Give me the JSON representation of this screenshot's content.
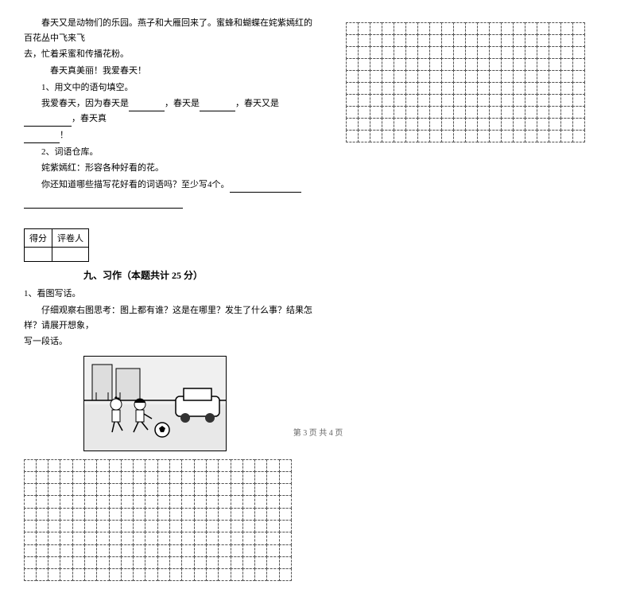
{
  "passage": {
    "line1": "春天又是动物们的乐园。燕子和大雁回来了。蜜蜂和蝴蝶在姹紫嫣红的百花丛中飞来飞",
    "line2": "去，忙着采蜜和传播花粉。",
    "line3": "春天真美丽！我爱春天！",
    "q1_label": "1、用文中的语句填空。",
    "q1_text_part1": "我爱春天，因为春天是",
    "q1_text_part2": "，春天是",
    "q1_text_part3": "，春天又是",
    "q1_text_part4": "，春天真",
    "q1_text_part5": "！",
    "q2_label": "2、词语仓库。",
    "q2_text1": "姹紫嫣红：形容各种好看的花。",
    "q2_text2": "你还知道哪些描写花好看的词语吗？至少写4个。"
  },
  "score_labels": {
    "score": "得分",
    "grader": "评卷人"
  },
  "section9": {
    "title": "九、习作（本题共计 25 分）",
    "q_label": "1、看图写话。",
    "q_text1": "仔细观察右图思考：图上都有谁？这是在哪里？发生了什么事？结果怎样？请展开想象，",
    "q_text2": "写一段话。"
  },
  "footer_text": "第 3 页 共 4 页",
  "grid": {
    "left_rows": 10,
    "left_cols": 22,
    "right_rows": 10,
    "right_cols": 20
  },
  "colors": {
    "bg": "#ffffff",
    "text": "#000000",
    "grid_border": "#555555"
  }
}
